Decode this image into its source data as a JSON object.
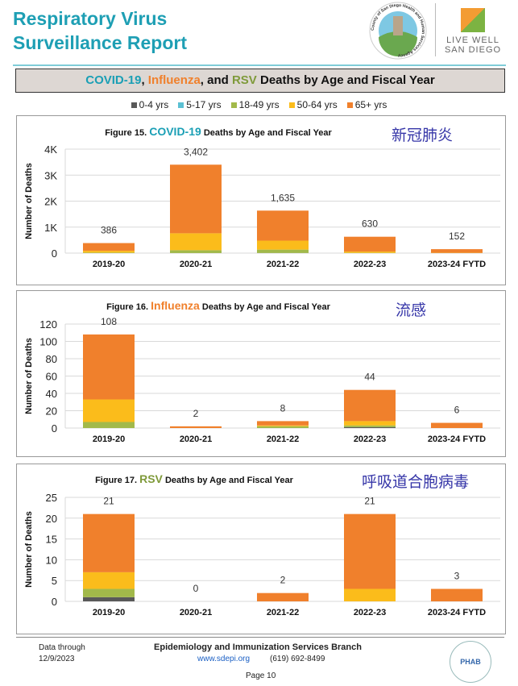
{
  "header": {
    "title_line1": "Respiratory Virus",
    "title_line2": "Surveillance Report",
    "logo1": "County of San Diego Health and Human Services Agency",
    "logo2_line1": "LIVE WELL",
    "logo2_line2": "SAN DIEGO"
  },
  "banner": {
    "part1": "COVID-19",
    "sep1": ", ",
    "part2": "Influenza",
    "sep2": ", and ",
    "part3": "RSV",
    "rest": " Deaths by Age and Fiscal Year"
  },
  "colors": {
    "covid": "#1a9fb5",
    "flu": "#f0802c",
    "rsv": "#7f9a3a",
    "annotation": "#3636a8"
  },
  "legend": [
    {
      "label": "0-4 yrs",
      "color": "#595959"
    },
    {
      "label": "5-17 yrs",
      "color": "#5bc0d3"
    },
    {
      "label": "18-49 yrs",
      "color": "#a2b94a"
    },
    {
      "label": "50-64 yrs",
      "color": "#fbbc1b"
    },
    {
      "label": "65+ yrs",
      "color": "#f0802c"
    }
  ],
  "chart_data": [
    {
      "type": "bar",
      "stacked": true,
      "title_prefix": "Figure 15. ",
      "title_virus": "COVID-19",
      "title_suffix": " Deaths by Age and Fiscal Year",
      "annotation": "新冠肺炎",
      "ylabel": "Number of Deaths",
      "ylim": [
        0,
        4000
      ],
      "yticks": [
        "0",
        "1K",
        "2K",
        "3K",
        "4K"
      ],
      "grid": true,
      "categories": [
        "2019-20",
        "2020-21",
        "2021-22",
        "2022-23",
        "2023-24 FYTD"
      ],
      "totals": [
        "386",
        "3,402",
        "1,635",
        "630",
        "152"
      ],
      "series": [
        {
          "name": "0-4 yrs",
          "values": [
            0,
            2,
            3,
            0,
            0
          ]
        },
        {
          "name": "5-17 yrs",
          "values": [
            0,
            1,
            2,
            0,
            0
          ]
        },
        {
          "name": "18-49 yrs",
          "values": [
            20,
            110,
            130,
            10,
            2
          ]
        },
        {
          "name": "50-64 yrs",
          "values": [
            70,
            650,
            345,
            50,
            10
          ]
        },
        {
          "name": "65+ yrs",
          "values": [
            296,
            2639,
            1155,
            570,
            140
          ]
        }
      ]
    },
    {
      "type": "bar",
      "stacked": true,
      "title_prefix": "Figure 16. ",
      "title_virus": "Influenza",
      "title_suffix": " Deaths by Age and Fiscal Year",
      "annotation": "流感",
      "ylabel": "Number of Deaths",
      "ylim": [
        0,
        120
      ],
      "yticks": [
        "0",
        "20",
        "40",
        "60",
        "80",
        "100",
        "120"
      ],
      "grid": true,
      "categories": [
        "2019-20",
        "2020-21",
        "2021-22",
        "2022-23",
        "2023-24 FYTD"
      ],
      "totals": [
        "108",
        "2",
        "8",
        "44",
        "6"
      ],
      "series": [
        {
          "name": "0-4 yrs",
          "values": [
            0,
            0,
            0,
            1,
            0
          ]
        },
        {
          "name": "5-17 yrs",
          "values": [
            0,
            0,
            0,
            0,
            0
          ]
        },
        {
          "name": "18-49 yrs",
          "values": [
            7,
            0,
            2,
            2,
            0
          ]
        },
        {
          "name": "50-64 yrs",
          "values": [
            26,
            0,
            1,
            5,
            0
          ]
        },
        {
          "name": "65+ yrs",
          "values": [
            75,
            2,
            5,
            36,
            6
          ]
        }
      ]
    },
    {
      "type": "bar",
      "stacked": true,
      "title_prefix": "Figure 17. ",
      "title_virus": "RSV",
      "title_suffix": " Deaths by Age and Fiscal Year",
      "annotation": "呼吸道合胞病毒",
      "ylabel": "Number of Deaths",
      "ylim": [
        0,
        25
      ],
      "yticks": [
        "0",
        "5",
        "10",
        "15",
        "20",
        "25"
      ],
      "grid": true,
      "categories": [
        "2019-20",
        "2020-21",
        "2021-22",
        "2022-23",
        "2023-24 FYTD"
      ],
      "totals": [
        "21",
        "0",
        "2",
        "21",
        "3"
      ],
      "series": [
        {
          "name": "0-4 yrs",
          "values": [
            1,
            0,
            0,
            0,
            0
          ]
        },
        {
          "name": "5-17 yrs",
          "values": [
            0,
            0,
            0,
            0,
            0
          ]
        },
        {
          "name": "18-49 yrs",
          "values": [
            2,
            0,
            0,
            0,
            0
          ]
        },
        {
          "name": "50-64 yrs",
          "values": [
            4,
            0,
            0,
            3,
            0
          ]
        },
        {
          "name": "65+ yrs",
          "values": [
            14,
            0,
            2,
            18,
            3
          ]
        }
      ]
    }
  ],
  "footer": {
    "data_through_label": "Data through",
    "data_through_date": "12/9/2023",
    "branch": "Epidemiology and Immunization Services Branch",
    "website": "www.sdepi.org",
    "phone": "(619) 692-8499",
    "page": "Page 10",
    "phab": "PHAB"
  }
}
